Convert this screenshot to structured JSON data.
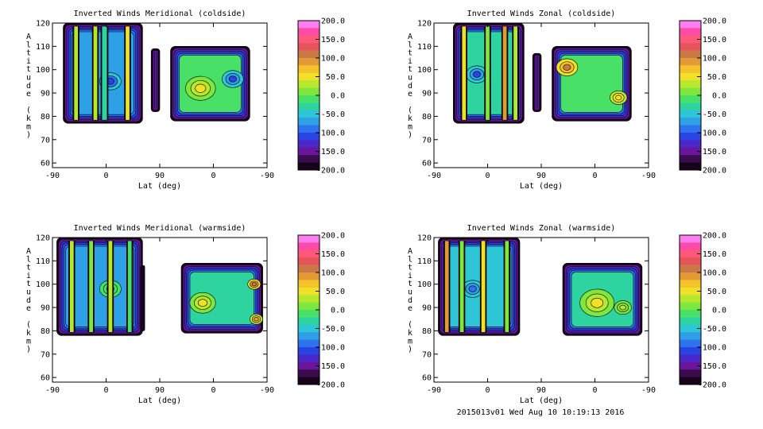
{
  "footer_text": "2015013v01 Wed Aug 10 10:19:13 2016",
  "colorbar": {
    "tick_labels": [
      "200.0",
      "150.0",
      "100.0",
      "50.0",
      "0.0",
      "-50.0",
      "-100.0",
      "-150.0",
      "-200.0"
    ],
    "colors": [
      "#ff7ff0",
      "#ff4aa8",
      "#ff5878",
      "#e6555a",
      "#cc7846",
      "#e49a34",
      "#f6c22a",
      "#f0e028",
      "#b6e82e",
      "#7ee63c",
      "#48e066",
      "#2ed4a0",
      "#2ec6d6",
      "#2ea0e6",
      "#2e72f0",
      "#2a44e4",
      "#4a28c8",
      "#6a169c",
      "#3a0c4e",
      "#16041a"
    ]
  },
  "chart_data": [
    {
      "type": "heatmap",
      "title": "Inverted Winds Meridional (coldside)",
      "xlabel": "Lat (deg)",
      "ylabel": "Altitude (km)",
      "x_ticks": [
        "-90",
        "0",
        "90",
        "0",
        "-90"
      ],
      "y_ticks": [
        "60",
        "70",
        "80",
        "90",
        "100",
        "110",
        "120"
      ],
      "ylim": [
        58,
        120
      ],
      "zlim": [
        -200,
        200
      ],
      "regions": [
        {
          "x_from": 0.05,
          "x_to": 0.42,
          "alt_bottom": 77,
          "alt_top": 120,
          "level": -60
        },
        {
          "x_from": 0.46,
          "x_to": 0.5,
          "alt_bottom": 82,
          "alt_top": 109,
          "level": -80
        },
        {
          "x_from": 0.55,
          "x_to": 0.92,
          "alt_bottom": 78,
          "alt_top": 110,
          "level": -10
        }
      ],
      "stripes": [
        {
          "x": 0.1,
          "w": 0.02,
          "level": 40
        },
        {
          "x": 0.19,
          "w": 0.02,
          "level": 30
        },
        {
          "x": 0.23,
          "w": 0.025,
          "level": -20
        },
        {
          "x": 0.34,
          "w": 0.02,
          "level": 50
        }
      ],
      "blobs": [
        {
          "x": 0.27,
          "y": 95,
          "r": 0.05,
          "level": -100
        },
        {
          "x": 0.69,
          "y": 92,
          "r": 0.07,
          "level": 40
        },
        {
          "x": 0.84,
          "y": 96,
          "r": 0.05,
          "level": -90
        }
      ]
    },
    {
      "type": "heatmap",
      "title": "Inverted Winds Zonal (coldside)",
      "xlabel": "Lat (deg)",
      "ylabel": "Altitude (km)",
      "x_ticks": [
        "-90",
        "0",
        "90",
        "0",
        "-90"
      ],
      "y_ticks": [
        "60",
        "70",
        "80",
        "90",
        "100",
        "110",
        "120"
      ],
      "ylim": [
        58,
        120
      ],
      "zlim": [
        -200,
        200
      ],
      "regions": [
        {
          "x_from": 0.09,
          "x_to": 0.42,
          "alt_bottom": 77,
          "alt_top": 120,
          "level": -30
        },
        {
          "x_from": 0.46,
          "x_to": 0.5,
          "alt_bottom": 82,
          "alt_top": 107,
          "level": -70
        },
        {
          "x_from": 0.55,
          "x_to": 0.92,
          "alt_bottom": 78,
          "alt_top": 110,
          "level": -10
        }
      ],
      "stripes": [
        {
          "x": 0.13,
          "w": 0.02,
          "level": 60
        },
        {
          "x": 0.24,
          "w": 0.02,
          "level": 20
        },
        {
          "x": 0.32,
          "w": 0.02,
          "level": 90
        },
        {
          "x": 0.37,
          "w": 0.02,
          "level": 30
        }
      ],
      "blobs": [
        {
          "x": 0.2,
          "y": 98,
          "r": 0.05,
          "level": -90
        },
        {
          "x": 0.62,
          "y": 101,
          "r": 0.05,
          "level": 90
        },
        {
          "x": 0.86,
          "y": 88,
          "r": 0.04,
          "level": 50
        }
      ]
    },
    {
      "type": "heatmap",
      "title": "Inverted Winds Meridional (warmside)",
      "xlabel": "Lat (deg)",
      "ylabel": "Altitude (km)",
      "x_ticks": [
        "-90",
        "0",
        "90",
        "0",
        "-90"
      ],
      "y_ticks": [
        "60",
        "70",
        "80",
        "90",
        "100",
        "110",
        "120"
      ],
      "ylim": [
        58,
        120
      ],
      "zlim": [
        -200,
        200
      ],
      "regions": [
        {
          "x_from": 0.02,
          "x_to": 0.42,
          "alt_bottom": 78,
          "alt_top": 120,
          "level": -60
        },
        {
          "x_from": 0.41,
          "x_to": 0.43,
          "alt_bottom": 80,
          "alt_top": 108,
          "level": -80
        },
        {
          "x_from": 0.6,
          "x_to": 0.98,
          "alt_bottom": 79,
          "alt_top": 109,
          "level": -30
        }
      ],
      "stripes": [
        {
          "x": 0.08,
          "w": 0.02,
          "level": 40
        },
        {
          "x": 0.17,
          "w": 0.02,
          "level": 10
        },
        {
          "x": 0.26,
          "w": 0.02,
          "level": 30
        },
        {
          "x": 0.35,
          "w": 0.02,
          "level": -10
        }
      ],
      "blobs": [
        {
          "x": 0.27,
          "y": 98,
          "r": 0.05,
          "level": -20
        },
        {
          "x": 0.7,
          "y": 92,
          "r": 0.06,
          "level": 40
        },
        {
          "x": 0.94,
          "y": 100,
          "r": 0.03,
          "level": 100
        },
        {
          "x": 0.95,
          "y": 85,
          "r": 0.03,
          "level": 80
        }
      ]
    },
    {
      "type": "heatmap",
      "title": "Inverted Winds Zonal (warmside)",
      "xlabel": "Lat (deg)",
      "ylabel": "Altitude (km)",
      "x_ticks": [
        "-90",
        "0",
        "90",
        "0",
        "-90"
      ],
      "y_ticks": [
        "60",
        "70",
        "80",
        "90",
        "100",
        "110",
        "120"
      ],
      "ylim": [
        58,
        120
      ],
      "zlim": [
        -200,
        200
      ],
      "regions": [
        {
          "x_from": 0.02,
          "x_to": 0.4,
          "alt_bottom": 78,
          "alt_top": 120,
          "level": -40
        },
        {
          "x_from": 0.6,
          "x_to": 0.97,
          "alt_bottom": 78,
          "alt_top": 109,
          "level": -20
        }
      ],
      "stripes": [
        {
          "x": 0.05,
          "w": 0.02,
          "level": 90
        },
        {
          "x": 0.12,
          "w": 0.02,
          "level": 10
        },
        {
          "x": 0.22,
          "w": 0.02,
          "level": 60
        },
        {
          "x": 0.33,
          "w": 0.02,
          "level": 20
        }
      ],
      "blobs": [
        {
          "x": 0.18,
          "y": 98,
          "r": 0.05,
          "level": -80
        },
        {
          "x": 0.76,
          "y": 92,
          "r": 0.08,
          "level": 40
        },
        {
          "x": 0.88,
          "y": 90,
          "r": 0.04,
          "level": 20
        }
      ]
    }
  ]
}
